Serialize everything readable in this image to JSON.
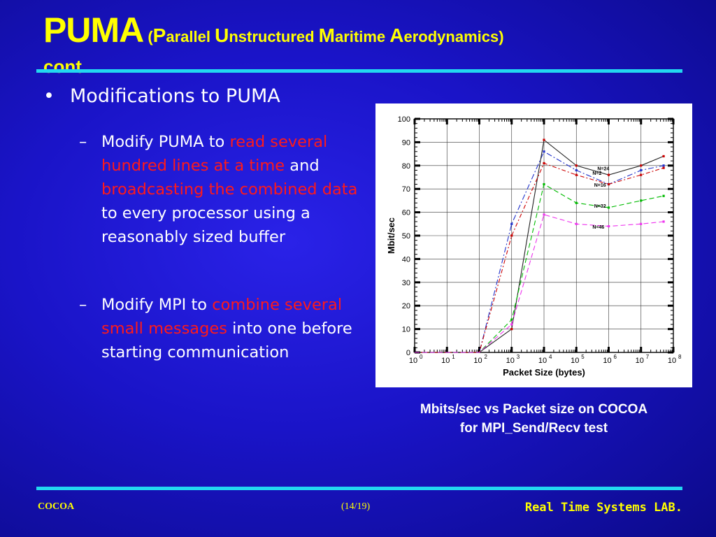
{
  "title": {
    "main": "PUMA",
    "open_paren": " (",
    "p_letter": "P",
    "p_rest": "arallel ",
    "u_letter": "U",
    "u_rest": "nstructured ",
    "m_letter": "M",
    "m_rest": "aritime ",
    "a_letter": "A",
    "a_rest": "erodynamics)",
    "cont": "cont."
  },
  "bullet": {
    "symbol": "•",
    "text": "Modifications to PUMA"
  },
  "item1": {
    "dash": "–",
    "t1": "Modify PUMA to ",
    "r1": "read several hundred lines at a time",
    "t2": " and ",
    "r2": "broadcasting the combined data",
    "t3": " to every processor using a reasonably sized buffer"
  },
  "item2": {
    "dash": "–",
    "t1": "Modify MPI to ",
    "r1": "combine several small messages",
    "t2": " into one before starting communication"
  },
  "caption": {
    "line1": "Mbits/sec vs Packet size on COCOA",
    "line2": "for MPI_Send/Recv test"
  },
  "footer": {
    "left": "COCOA",
    "middle": "(14/19)",
    "right": "Real Time Systems LAB."
  },
  "colors": {
    "background": "#1a14c8",
    "title": "#ffff00",
    "rule": "#22d8f0",
    "highlight": "#ff1a1a"
  },
  "chart_data": {
    "type": "line",
    "xlabel": "Packet Size (bytes)",
    "ylabel": "Mbit/sec",
    "x_scale": "log10",
    "xlim": [
      1,
      100000000
    ],
    "ylim": [
      0,
      100
    ],
    "grid": true,
    "x_tick_exponents": [
      0,
      1,
      2,
      3,
      4,
      5,
      6,
      7,
      8
    ],
    "y_ticks": [
      0,
      10,
      20,
      30,
      40,
      50,
      60,
      70,
      80,
      90,
      100
    ],
    "x": [
      1,
      10,
      100,
      1000,
      10000,
      100000,
      1000000,
      10000000,
      50000000
    ],
    "series": [
      {
        "name": "N=2",
        "color": "#2233cc",
        "dash": "8 3 2 3",
        "marker": "#2233cc",
        "values": [
          0,
          0,
          0,
          55,
          86,
          78,
          72,
          78,
          80
        ]
      },
      {
        "name": "N=24",
        "color": "#222222",
        "dash": "",
        "marker": "#cc0000",
        "values": [
          0,
          0,
          0,
          10,
          91,
          80,
          76,
          80,
          84
        ]
      },
      {
        "name": "N=16",
        "color": "#cc0000",
        "dash": "6 3 2 3",
        "marker": "#cc0000",
        "values": [
          0,
          0,
          0,
          50,
          81,
          76,
          72,
          76,
          79
        ]
      },
      {
        "name": "N=32",
        "color": "#00bb00",
        "dash": "7 4",
        "marker": "#00bb00",
        "values": [
          0,
          0,
          0,
          14,
          72,
          64,
          62,
          65,
          67
        ]
      },
      {
        "name": "N=46",
        "color": "#ee33ee",
        "dash": "7 4",
        "marker": "#ee33ee",
        "values": [
          0,
          0,
          0,
          12,
          59,
          55,
          54,
          55,
          56
        ]
      }
    ],
    "annotations": [
      "N=2",
      "N=24",
      "N=16",
      "N=32",
      "N=46"
    ]
  }
}
